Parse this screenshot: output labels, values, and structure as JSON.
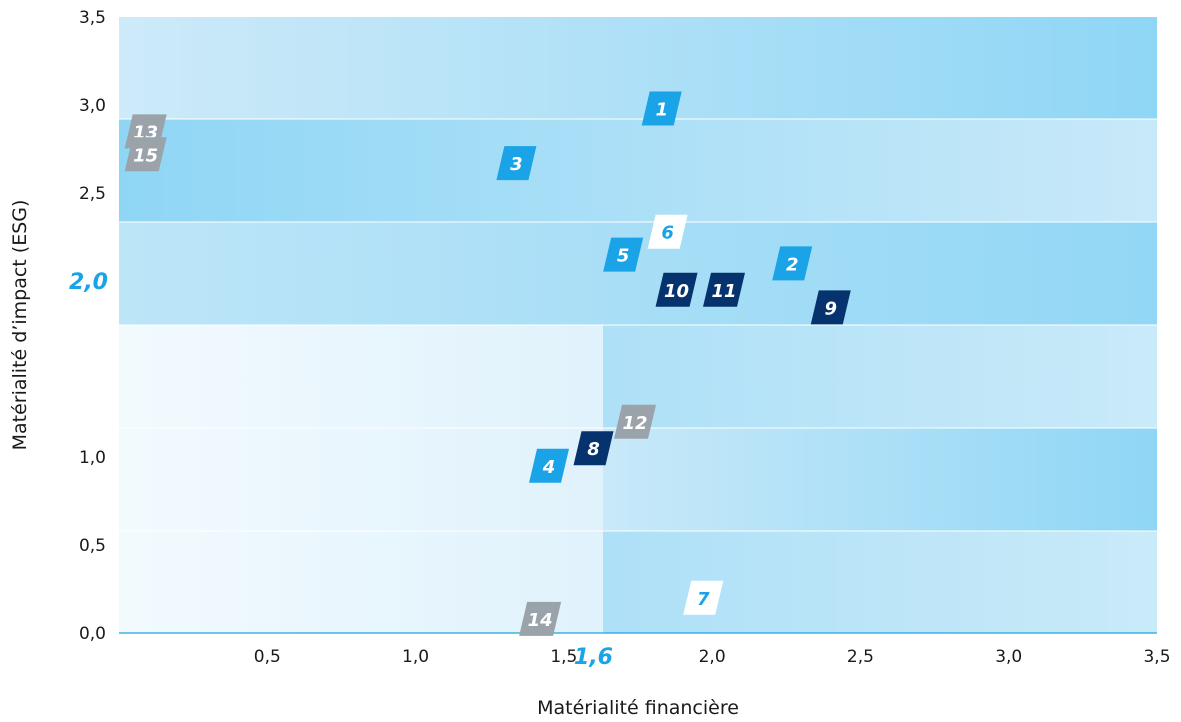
{
  "chart_data": {
    "type": "scatter",
    "xlabel": "Matérialité financière",
    "ylabel": "Matérialité d’impact (ESG)",
    "xlim": [
      0,
      3.5
    ],
    "ylim": [
      0,
      3.5
    ],
    "x_ticks": [
      "0,5",
      "1,0",
      "1,5",
      "2,0",
      "2,5",
      "3,0",
      "3,5"
    ],
    "y_ticks": [
      "0,0",
      "0,5",
      "1,0",
      "2,5",
      "3,0",
      "3,5"
    ],
    "x_threshold": {
      "value": 1.6,
      "label": "1,6"
    },
    "y_threshold": {
      "value": 2.0,
      "label": "2,0"
    },
    "points": [
      {
        "label": "1",
        "x": 1.83,
        "y": 2.98,
        "category": "bright-blue"
      },
      {
        "label": "2",
        "x": 2.27,
        "y": 2.1,
        "category": "bright-blue"
      },
      {
        "label": "3",
        "x": 1.34,
        "y": 2.67,
        "category": "bright-blue"
      },
      {
        "label": "4",
        "x": 1.45,
        "y": 0.95,
        "category": "bright-blue"
      },
      {
        "label": "5",
        "x": 1.7,
        "y": 2.15,
        "category": "bright-blue"
      },
      {
        "label": "6",
        "x": 1.85,
        "y": 2.28,
        "category": "white"
      },
      {
        "label": "7",
        "x": 1.97,
        "y": 0.2,
        "category": "white"
      },
      {
        "label": "8",
        "x": 1.6,
        "y": 1.05,
        "category": "navy"
      },
      {
        "label": "9",
        "x": 2.4,
        "y": 1.85,
        "category": "navy"
      },
      {
        "label": "10",
        "x": 1.88,
        "y": 1.95,
        "category": "navy"
      },
      {
        "label": "11",
        "x": 2.04,
        "y": 1.95,
        "category": "navy"
      },
      {
        "label": "12",
        "x": 1.74,
        "y": 1.2,
        "category": "grey"
      },
      {
        "label": "13",
        "x": 0.09,
        "y": 2.85,
        "category": "grey"
      },
      {
        "label": "14",
        "x": 1.42,
        "y": 0.08,
        "category": "grey"
      },
      {
        "label": "15",
        "x": 0.09,
        "y": 2.72,
        "category": "grey"
      }
    ],
    "grid": false,
    "legend": "none"
  },
  "colors": {
    "bright-blue": "#1aa3e6",
    "navy": "#06336e",
    "grey": "#9aa3aa",
    "white": "#ffffff",
    "accent": "#1aa3e6"
  }
}
